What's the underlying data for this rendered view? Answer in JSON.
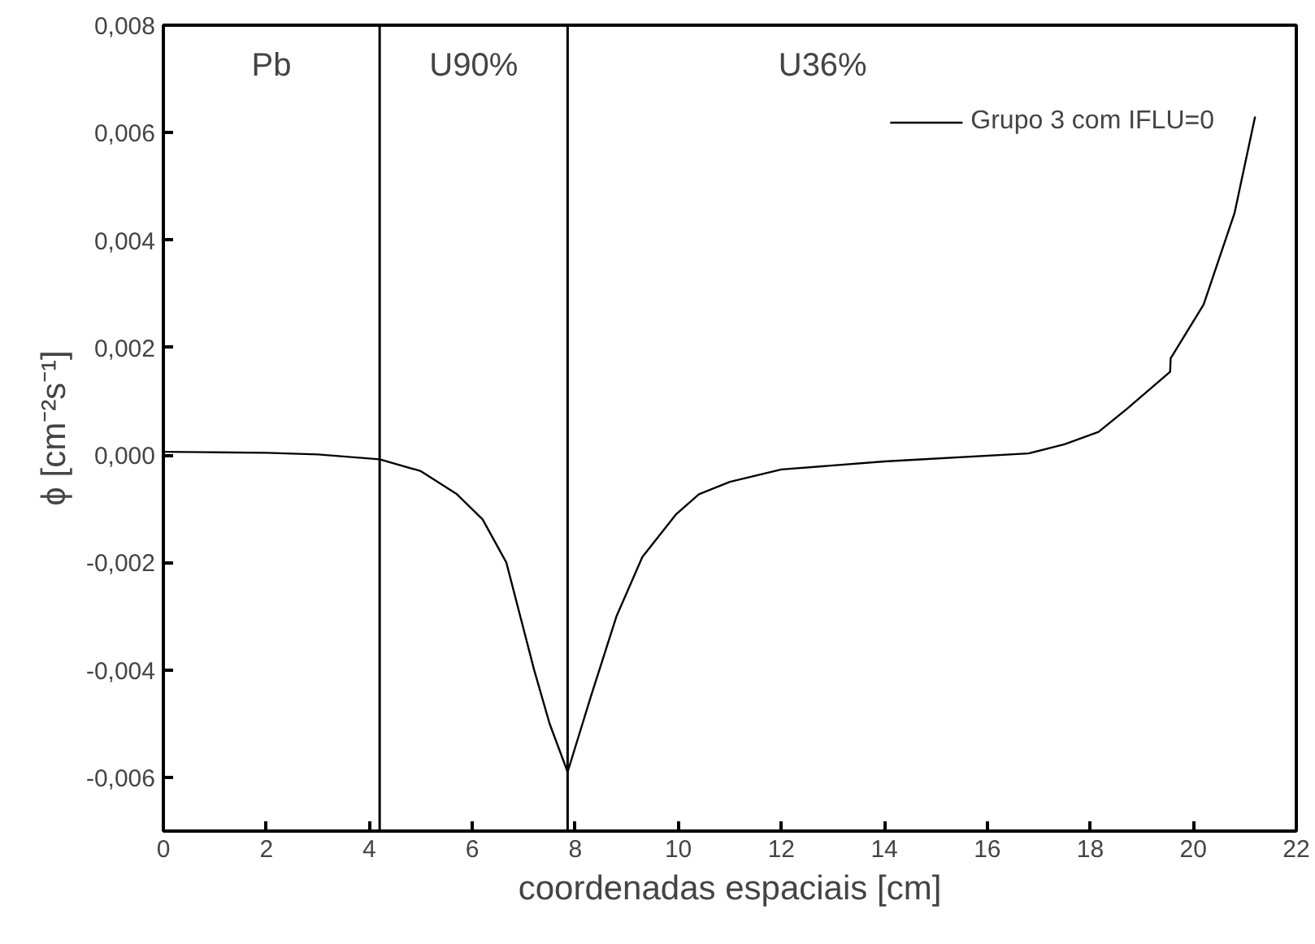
{
  "chart_data": {
    "type": "line",
    "xlabel": "coordenadas espaciais [cm]",
    "ylabel": "ϕ [cm⁻²s⁻¹]",
    "x": [
      0,
      1,
      2,
      3,
      4.2,
      5,
      5.7,
      6.2,
      6.66,
      7.2,
      7.5,
      7.85,
      8.3,
      8.8,
      9.3,
      9.96,
      10.4,
      11,
      12,
      14,
      16.8,
      17.5,
      18.16,
      18.7,
      19.55,
      19.56,
      20.2,
      20.8,
      21.2
    ],
    "series": [
      {
        "name": "Grupo 3 com IFLU=0",
        "color": "#000000",
        "values": [
          6e-05,
          5e-05,
          4e-05,
          1e-05,
          -8e-05,
          -0.0003,
          -0.00073,
          -0.0012,
          -0.002,
          -0.004,
          -0.005,
          -0.0059,
          -0.0045,
          -0.003,
          -0.0019,
          -0.0011,
          -0.00073,
          -0.0005,
          -0.00027,
          -0.00012,
          3e-05,
          0.0002,
          0.00043,
          0.00085,
          0.00155,
          0.0018,
          0.0028,
          0.0045,
          0.0063
        ]
      }
    ],
    "xlim": [
      0,
      22
    ],
    "xticks": [
      0,
      2,
      4,
      6,
      8,
      10,
      12,
      14,
      16,
      18,
      20,
      22
    ],
    "ylim": [
      -0.007,
      0.008
    ],
    "yticks": [
      {
        "value": -0.006,
        "label": "-0,006"
      },
      {
        "value": -0.004,
        "label": "-0,004"
      },
      {
        "value": -0.002,
        "label": "-0,002"
      },
      {
        "value": 0,
        "label": "0,000"
      },
      {
        "value": 0.002,
        "label": "0,002"
      },
      {
        "value": 0.004,
        "label": "0,004"
      },
      {
        "value": 0.006,
        "label": "0,006"
      },
      {
        "value": 0.008,
        "label": "0,008"
      }
    ],
    "ref_lines": [
      {
        "axis": "x",
        "value": 4.2,
        "color": "#000000"
      },
      {
        "axis": "x",
        "value": 7.85,
        "color": "#000000"
      }
    ],
    "annotations": [
      "Pb",
      "U90%",
      "U36%"
    ],
    "grid": false,
    "legend": "top right",
    "line_style": "solid"
  }
}
